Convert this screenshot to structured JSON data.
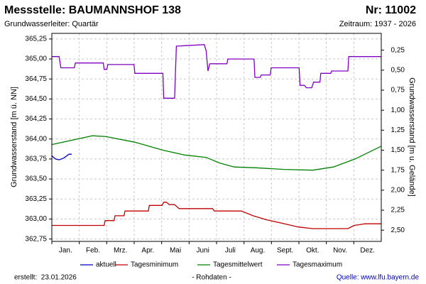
{
  "chart_data": {
    "type": "line",
    "title": "Messstelle: BAUMANNSHOF 138",
    "title_right": "Nr: 11002",
    "subtitle": "Grundwasserleiter: Quartär",
    "subtitle_right": "Zeitraum: 1937 - 2026",
    "y_label": "Grundwasserstand [m ü. NN]",
    "y2_label": "Grundwasserstand [m u. Gelände]",
    "categories": [
      "Jan.",
      "Feb.",
      "Mrz.",
      "Apr.",
      "Mai",
      "Juni",
      "Juli",
      "Aug.",
      "Sept.",
      "Okt.",
      "Nov.",
      "Dez."
    ],
    "xlim": [
      0,
      365
    ],
    "ylim": [
      362.72,
      365.32
    ],
    "yticks": [
      {
        "value": 362.75,
        "label": "362,75"
      },
      {
        "value": 363.0,
        "label": "363,00"
      },
      {
        "value": 363.25,
        "label": "363,25"
      },
      {
        "value": 363.5,
        "label": "363,50"
      },
      {
        "value": 363.75,
        "label": "363,75"
      },
      {
        "value": 364.0,
        "label": "364,00"
      },
      {
        "value": 364.25,
        "label": "364,25"
      },
      {
        "value": 364.5,
        "label": "364,50"
      },
      {
        "value": 364.75,
        "label": "364,75"
      },
      {
        "value": 365.0,
        "label": "365,00"
      },
      {
        "value": 365.25,
        "label": "365,25"
      }
    ],
    "y2lim": [
      2.64,
      0.04
    ],
    "y2ticks": [
      {
        "value": 0.25,
        "label": "0,25"
      },
      {
        "value": 0.5,
        "label": "0,50"
      },
      {
        "value": 0.75,
        "label": "0,75"
      },
      {
        "value": 1.0,
        "label": "1,00"
      },
      {
        "value": 1.25,
        "label": "1,25"
      },
      {
        "value": 1.5,
        "label": "1,50"
      },
      {
        "value": 1.75,
        "label": "1,75"
      },
      {
        "value": 2.0,
        "label": "2,00"
      },
      {
        "value": 2.25,
        "label": "2,25"
      },
      {
        "value": 2.5,
        "label": "2,50"
      }
    ],
    "grid": true,
    "legend": "bottom",
    "series": [
      {
        "name": "aktuell",
        "color": "#0000c0",
        "x": [
          0,
          4,
          8,
          13,
          19,
          22
        ],
        "values": [
          363.79,
          363.75,
          363.74,
          363.76,
          363.81,
          363.81
        ]
      },
      {
        "name": "Tagesminimum",
        "color": "#c00000",
        "x": [
          0,
          58,
          59,
          69,
          70,
          80,
          81,
          107,
          108,
          122,
          124,
          127,
          130,
          136,
          141,
          178,
          180,
          210,
          223,
          238,
          258,
          273,
          289,
          328,
          335,
          347,
          365
        ],
        "values": [
          362.92,
          362.92,
          362.98,
          362.98,
          363.04,
          363.04,
          363.1,
          363.1,
          363.17,
          363.17,
          363.21,
          363.21,
          363.18,
          363.18,
          363.13,
          363.13,
          363.1,
          363.1,
          363.04,
          362.99,
          362.94,
          362.9,
          362.88,
          362.88,
          362.92,
          362.94,
          362.94
        ]
      },
      {
        "name": "Tagesmittelwert",
        "color": "#008000",
        "x": [
          0,
          45,
          60,
          92,
          123,
          147,
          171,
          186,
          202,
          226,
          257,
          289,
          312,
          336,
          365
        ],
        "values": [
          363.93,
          364.04,
          364.03,
          363.96,
          363.86,
          363.8,
          363.77,
          363.7,
          363.65,
          363.64,
          363.62,
          363.61,
          363.65,
          363.75,
          363.91
        ]
      },
      {
        "name": "Tagesmaximum",
        "color": "#8000c0",
        "x": [
          0,
          8,
          10,
          25,
          26,
          57,
          58,
          61,
          62,
          91,
          92,
          123,
          124,
          136,
          138,
          169,
          171,
          173,
          175,
          194,
          195,
          224,
          225,
          231,
          232,
          242,
          243,
          274,
          275,
          280,
          282,
          288,
          290,
          297,
          298,
          309,
          310,
          328,
          329,
          365
        ],
        "values": [
          365.03,
          365.03,
          364.89,
          364.89,
          364.95,
          364.95,
          364.87,
          364.87,
          364.93,
          364.93,
          364.82,
          364.82,
          364.51,
          364.51,
          365.16,
          365.18,
          365.1,
          364.85,
          364.94,
          364.94,
          365.0,
          365.0,
          364.77,
          364.77,
          364.8,
          364.8,
          364.89,
          364.89,
          364.67,
          364.67,
          364.64,
          364.64,
          364.71,
          364.71,
          364.82,
          364.82,
          364.85,
          364.85,
          365.03,
          365.03
        ]
      }
    ],
    "footer_left": "erstellt:  23.01.2026",
    "footer_center": "- Rohdaten -",
    "footer_right": "Quelle: www.lfu.bayern.de"
  }
}
